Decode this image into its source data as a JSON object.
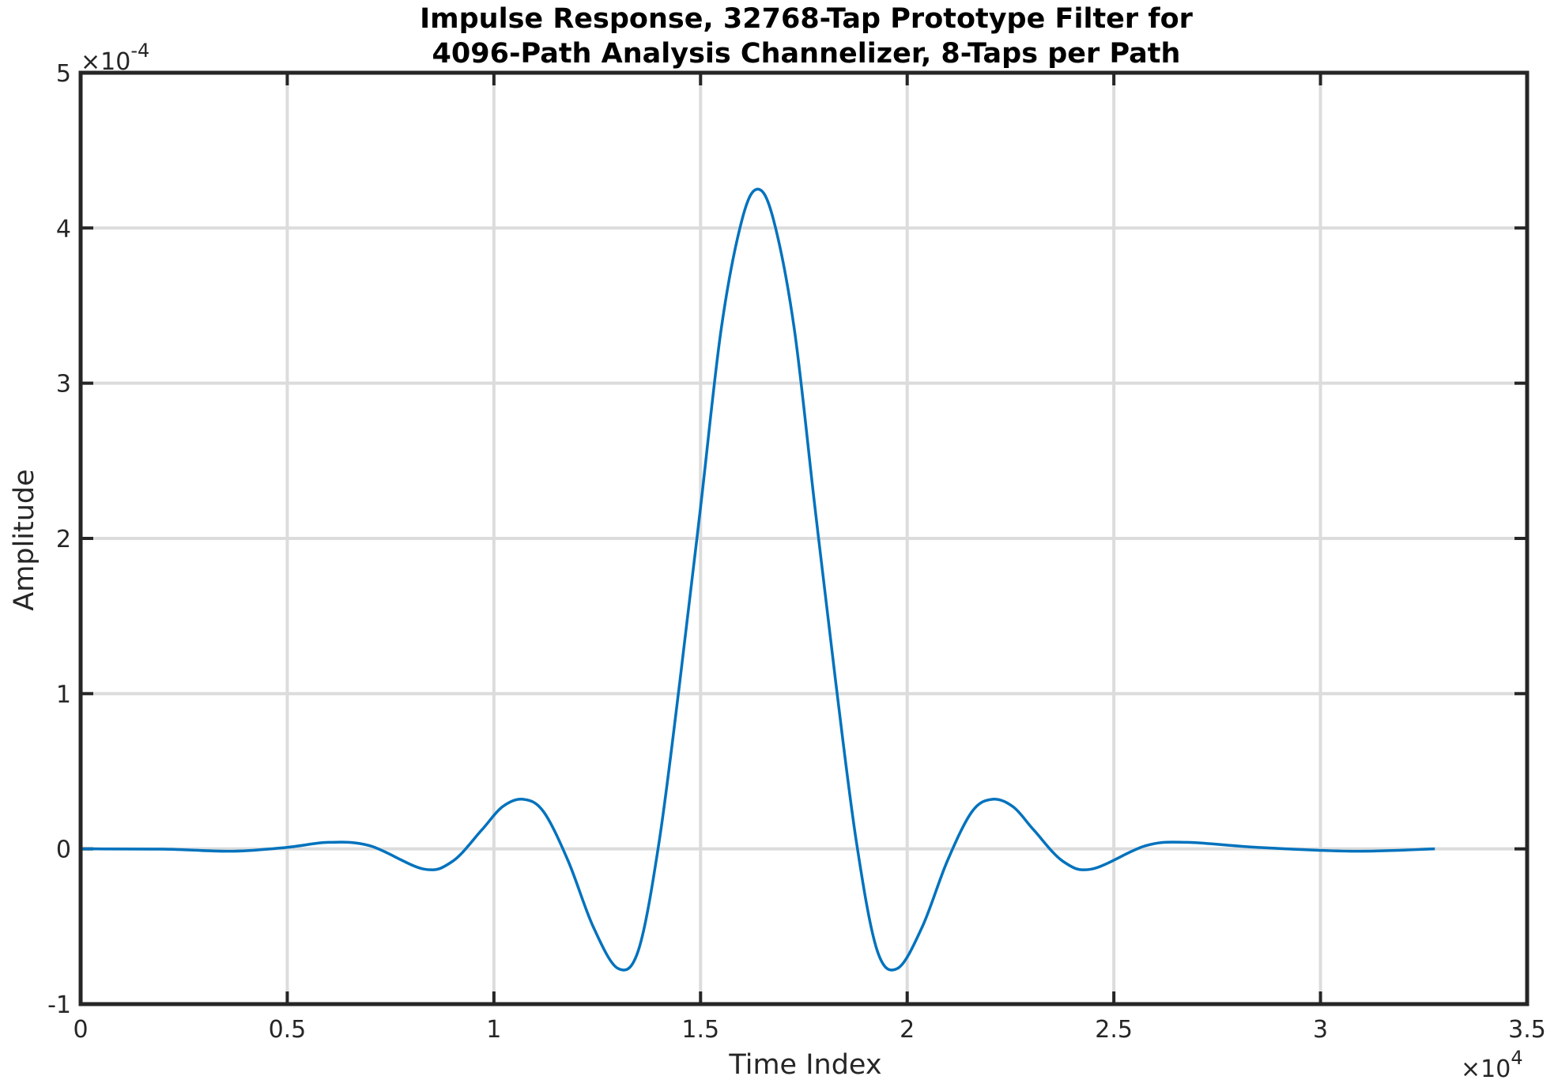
{
  "chart_data": {
    "type": "line",
    "title_line1": "Impulse Response, 32768-Tap Prototype Filter for",
    "title_line2": "4096-Path Analysis Channelizer, 8-Taps per Path",
    "xlabel": "Time Index",
    "ylabel": "Amplitude",
    "xlim": [
      0,
      35000
    ],
    "ylim": [
      -0.0001,
      0.0005
    ],
    "x_multiplier_base": "×10",
    "x_multiplier_exp": "4",
    "y_multiplier_base": "×10",
    "y_multiplier_exp": "-4",
    "x_ticks": [
      0,
      5000,
      10000,
      15000,
      20000,
      25000,
      30000,
      35000
    ],
    "x_tick_labels": [
      "0",
      "0.5",
      "1",
      "1.5",
      "2",
      "2.5",
      "3",
      "3.5"
    ],
    "y_ticks": [
      -0.0001,
      0,
      0.0001,
      0.0002,
      0.0003,
      0.0004,
      0.0005
    ],
    "y_tick_labels": [
      "-1",
      "0",
      "1",
      "2",
      "3",
      "4",
      "5"
    ],
    "grid": true,
    "line_color": "#0072bd",
    "series": [
      {
        "x": [
          0,
          2000,
          3700,
          5000,
          6000,
          7000,
          8300,
          9000,
          9700,
          10200,
          10700,
          11200,
          11800,
          12400,
          13000,
          13500,
          14000,
          14500,
          15000,
          15500,
          16000,
          16384,
          16768,
          17268,
          17768,
          18268,
          18768,
          19268,
          19768,
          20368,
          20968,
          21568,
          22068,
          22568,
          23068,
          23768,
          24468,
          25768,
          26768,
          28468,
          30768,
          32767
        ],
        "y": [
          0,
          -2e-07,
          -1.5e-06,
          1e-06,
          4.2e-06,
          2e-06,
          -1.3e-05,
          -8e-06,
          1.2e-05,
          2.7e-05,
          3.2e-05,
          2.4e-05,
          -8e-06,
          -5e-05,
          -7.7e-05,
          -6.5e-05,
          5e-06,
          0.000108,
          0.00022,
          0.000335,
          0.000405,
          0.000425,
          0.000405,
          0.000335,
          0.00022,
          0.000108,
          5e-06,
          -6.5e-05,
          -7.7e-05,
          -5e-05,
          -8e-06,
          2.4e-05,
          3.2e-05,
          2.7e-05,
          1.2e-05,
          -8e-06,
          -1.3e-05,
          2e-06,
          4.2e-06,
          1e-06,
          -1.5e-06,
          0
        ]
      }
    ]
  },
  "colors": {
    "axis": "#262626",
    "grid": "#dcdcdc",
    "line": "#0072bd"
  }
}
